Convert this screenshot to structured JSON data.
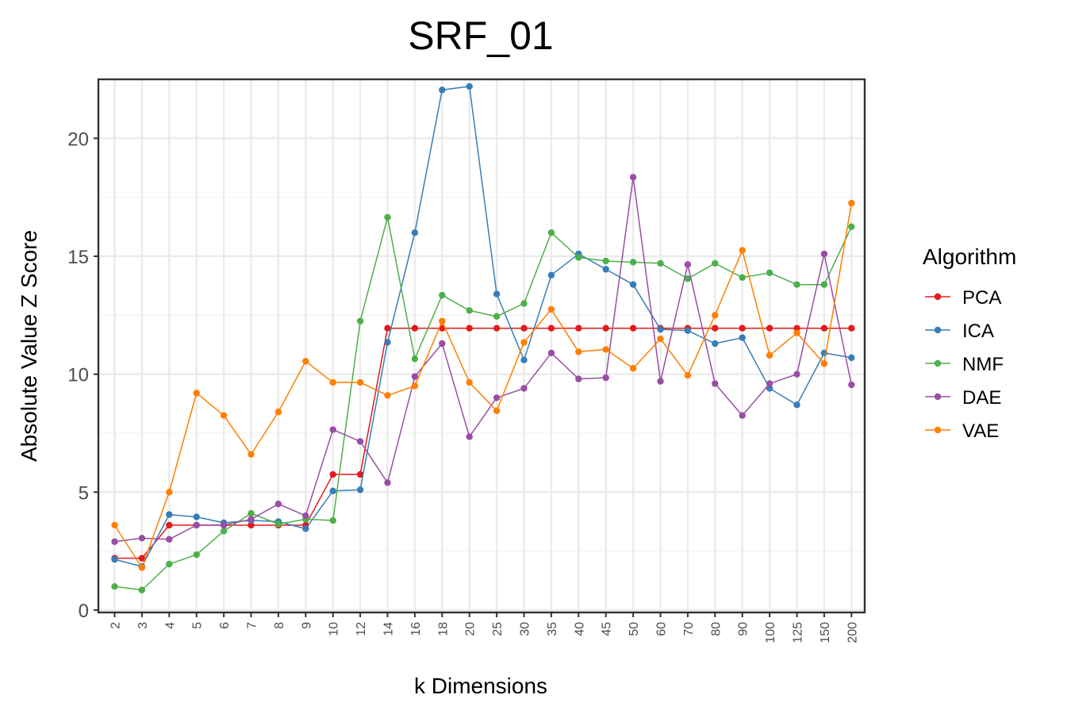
{
  "chart_data": {
    "type": "line",
    "title": "SRF_01",
    "xlabel": "k Dimensions",
    "ylabel": "Absolute Value Z Score",
    "categories": [
      "2",
      "3",
      "4",
      "5",
      "6",
      "7",
      "8",
      "9",
      "10",
      "12",
      "14",
      "16",
      "18",
      "20",
      "25",
      "30",
      "35",
      "40",
      "45",
      "50",
      "60",
      "70",
      "80",
      "90",
      "100",
      "125",
      "150",
      "200"
    ],
    "y_ticks": [
      "0",
      "5",
      "10",
      "15",
      "20"
    ],
    "ylim": [
      -0.1,
      22.5
    ],
    "grid": true,
    "legend": {
      "title": "Algorithm",
      "position": "right"
    },
    "series": [
      {
        "name": "PCA",
        "color": "#e41a1c",
        "values": [
          2.2,
          2.2,
          3.6,
          3.6,
          3.6,
          3.6,
          3.6,
          3.6,
          5.75,
          5.75,
          11.95,
          11.95,
          11.95,
          11.95,
          11.95,
          11.95,
          11.95,
          11.95,
          11.95,
          11.95,
          11.95,
          11.95,
          11.95,
          11.95,
          11.95,
          11.95,
          11.95,
          11.95
        ]
      },
      {
        "name": "ICA",
        "color": "#377eb8",
        "values": [
          2.15,
          1.85,
          4.05,
          3.95,
          3.7,
          3.8,
          3.75,
          3.45,
          5.05,
          5.1,
          11.35,
          16.0,
          22.05,
          22.2,
          13.4,
          10.6,
          14.2,
          15.1,
          14.45,
          13.8,
          11.9,
          11.85,
          11.3,
          11.55,
          9.4,
          8.7,
          10.9,
          10.7
        ]
      },
      {
        "name": "NMF",
        "color": "#4daf4a",
        "values": [
          1.0,
          0.85,
          1.95,
          2.35,
          3.35,
          4.1,
          3.65,
          3.85,
          3.8,
          12.25,
          16.65,
          10.65,
          13.35,
          12.7,
          12.45,
          13.0,
          16.0,
          14.95,
          14.8,
          14.75,
          14.7,
          14.05,
          14.7,
          14.1,
          14.3,
          13.8,
          13.8,
          16.25
        ]
      },
      {
        "name": "DAE",
        "color": "#984ea3",
        "values": [
          2.9,
          3.05,
          3.0,
          3.6,
          3.6,
          3.85,
          4.5,
          4.0,
          7.65,
          7.15,
          5.4,
          9.9,
          11.3,
          7.35,
          9.0,
          9.4,
          10.9,
          9.8,
          9.85,
          18.35,
          9.7,
          14.65,
          9.6,
          8.25,
          9.6,
          10.0,
          15.1,
          9.55
        ]
      },
      {
        "name": "VAE",
        "color": "#ff7f00",
        "values": [
          3.6,
          1.8,
          5.0,
          9.2,
          8.25,
          6.6,
          8.4,
          10.55,
          9.65,
          9.65,
          9.1,
          9.5,
          12.25,
          9.65,
          8.45,
          11.35,
          12.75,
          10.95,
          11.05,
          10.25,
          11.5,
          9.95,
          12.5,
          15.25,
          10.8,
          11.75,
          10.45,
          17.25
        ]
      }
    ]
  }
}
